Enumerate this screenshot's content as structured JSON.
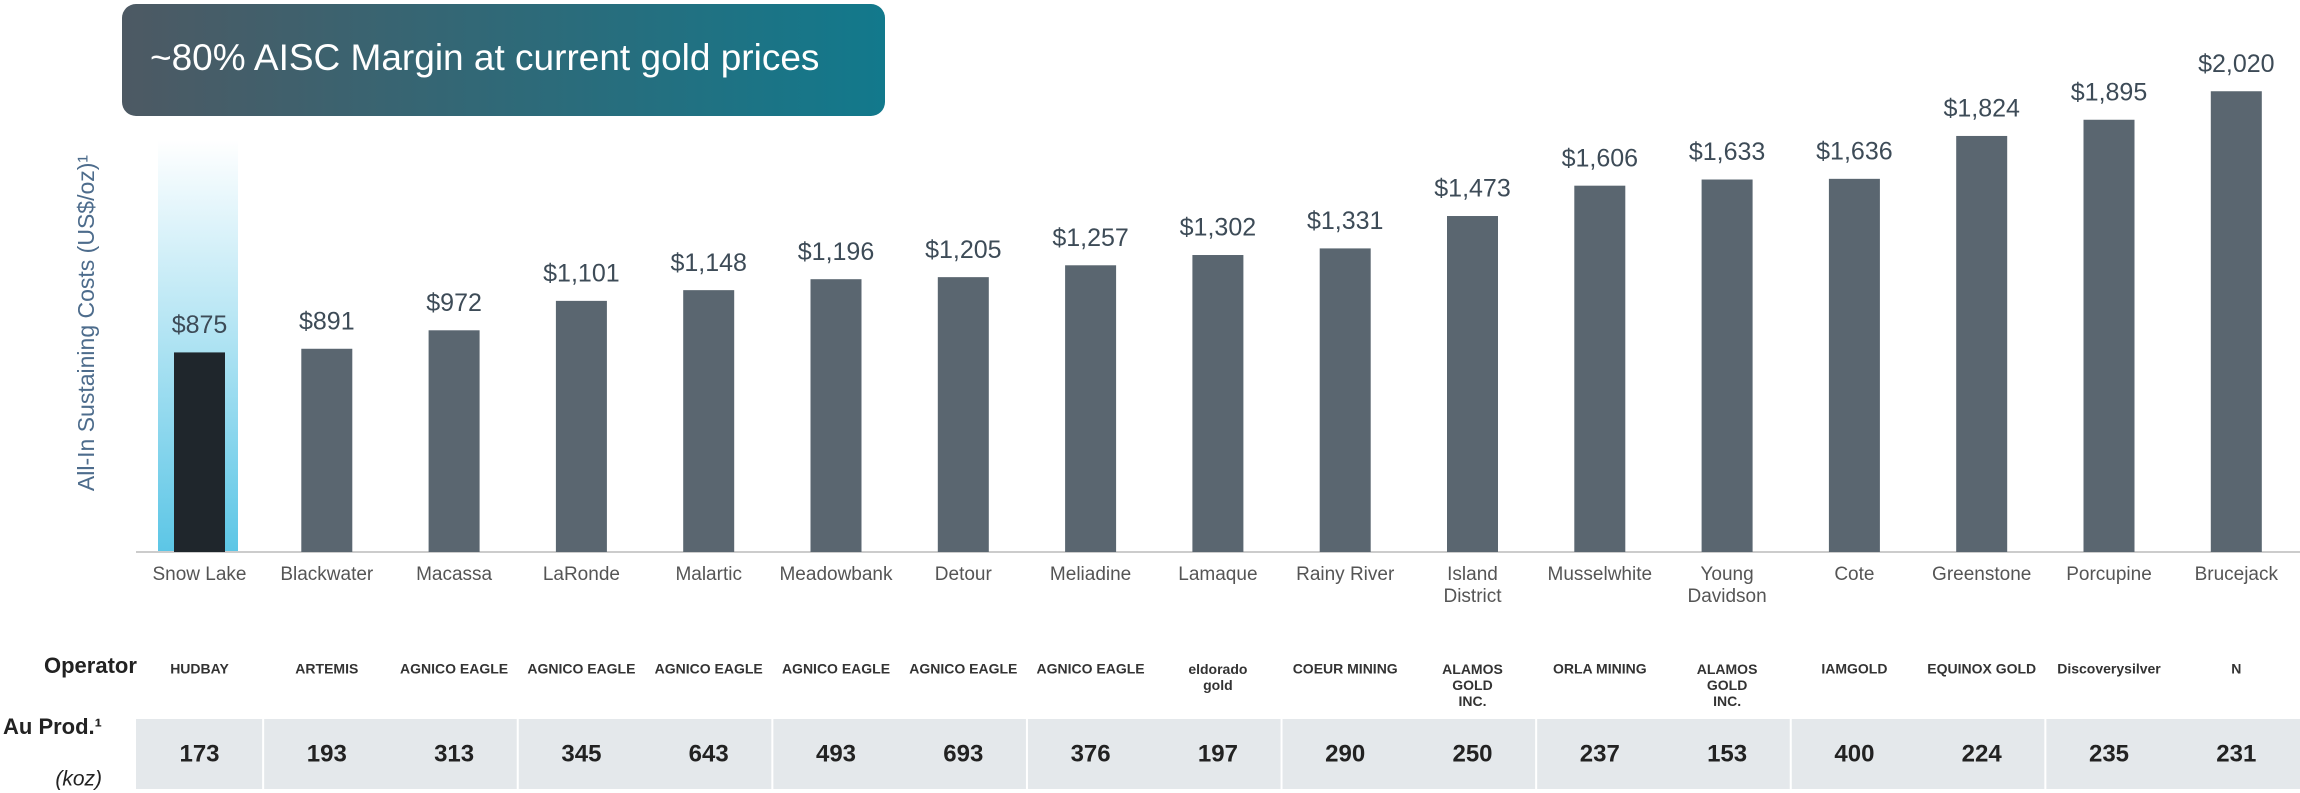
{
  "chart_data": {
    "type": "bar",
    "title": "~80% AISC Margin at current gold prices",
    "ylabel": "All-In Sustaining Costs (US$/oz)¹",
    "categories": [
      "Snow Lake",
      "Blackwater",
      "Macassa",
      "LaRonde",
      "Malartic",
      "Meadowbank",
      "Detour",
      "Meliadine",
      "Lamaque",
      "Rainy River",
      "Island District",
      "Musselwhite",
      "Young Davidson",
      "Cote",
      "Greenstone",
      "Porcupine",
      "Brucejack"
    ],
    "values": [
      875,
      891,
      972,
      1101,
      1148,
      1196,
      1205,
      1257,
      1302,
      1331,
      1473,
      1606,
      1633,
      1636,
      1824,
      1895,
      2020
    ],
    "value_labels": [
      "$875",
      "$891",
      "$972",
      "$1,101",
      "$1,148",
      "$1,196",
      "$1,205",
      "$1,257",
      "$1,302",
      "$1,331",
      "$1,473",
      "$1,606",
      "$1,633",
      "$1,636",
      "$1,824",
      "$1,895",
      "$2,020"
    ],
    "colors": [
      "#1f262c",
      "#5a6670",
      "#5a6670",
      "#5a6670",
      "#5a6670",
      "#5a6670",
      "#5a6670",
      "#5a6670",
      "#5a6670",
      "#5a6670",
      "#5a6670",
      "#5a6670",
      "#5a6670",
      "#5a6670",
      "#5a6670",
      "#5a6670",
      "#5a6670"
    ],
    "ylim": [
      0,
      2100
    ],
    "operator_label": "Operator",
    "operators": [
      "HUDBAY",
      "ARTEMIS",
      "AGNICO EAGLE",
      "AGNICO EAGLE",
      "AGNICO EAGLE",
      "AGNICO EAGLE",
      "AGNICO EAGLE",
      "AGNICO EAGLE",
      "eldorado gold",
      "COEUR MINING",
      "ALAMOS GOLD INC.",
      "ORLA MINING",
      "ALAMOS GOLD INC.",
      "IAMGOLD",
      "EQUINOX GOLD",
      "Discoverysilver",
      "N"
    ],
    "production": {
      "label": "Au Prod.¹",
      "unit": "(koz)",
      "values": [
        173,
        193,
        313,
        345,
        643,
        493,
        693,
        376,
        197,
        290,
        250,
        237,
        153,
        400,
        224,
        235,
        231
      ]
    }
  }
}
